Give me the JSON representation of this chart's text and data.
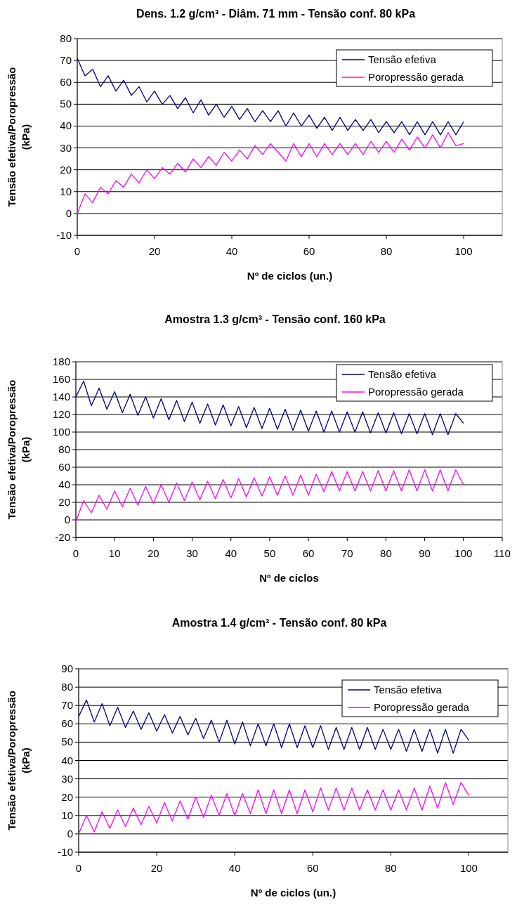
{
  "chart_data": [
    {
      "type": "line",
      "title": "Dens. 1.2 g/cm³ - Diâm. 71 mm - Tensão conf. 80 kPa",
      "xlabel": "Nº de ciclos (un.)",
      "ylabel": "Tensão efetiva/Poropressão (kPa)",
      "xlim": [
        0,
        110
      ],
      "xticks": [
        0,
        20,
        40,
        60,
        80,
        100
      ],
      "ylim": [
        -10,
        80
      ],
      "yticks": [
        -10,
        0,
        10,
        20,
        30,
        40,
        50,
        60,
        70,
        80
      ],
      "grid": "y",
      "legend": "top right",
      "x": [
        0,
        2,
        4,
        6,
        8,
        10,
        12,
        14,
        16,
        18,
        20,
        22,
        24,
        26,
        28,
        30,
        32,
        34,
        36,
        38,
        40,
        42,
        44,
        46,
        48,
        50,
        52,
        54,
        56,
        58,
        60,
        62,
        64,
        66,
        68,
        70,
        72,
        74,
        76,
        78,
        80,
        82,
        84,
        86,
        88,
        90,
        92,
        94,
        96,
        98,
        100
      ],
      "series": [
        {
          "name": "Tensão efetiva",
          "color": "#000080",
          "values": [
            71,
            63,
            66,
            58,
            63,
            56,
            61,
            54,
            58,
            51,
            56,
            50,
            54,
            48,
            53,
            46,
            52,
            45,
            50,
            44,
            49,
            43,
            48,
            42,
            47,
            42,
            47,
            40,
            46,
            40,
            45,
            39,
            44,
            38,
            44,
            38,
            43,
            38,
            43,
            37,
            42,
            37,
            42,
            36,
            42,
            36,
            42,
            36,
            42,
            36,
            42
          ]
        },
        {
          "name": "Poropressão gerada",
          "color": "#ff00ff",
          "values": [
            0,
            9,
            5,
            12,
            9,
            15,
            12,
            18,
            14,
            20,
            16,
            21,
            18,
            23,
            19,
            25,
            21,
            26,
            22,
            28,
            24,
            29,
            25,
            31,
            27,
            32,
            28,
            24,
            32,
            26,
            32,
            26,
            32,
            27,
            32,
            27,
            32,
            27,
            33,
            28,
            33,
            28,
            34,
            29,
            35,
            30,
            36,
            30,
            37,
            31,
            32
          ]
        }
      ]
    },
    {
      "type": "line",
      "title": "Amostra 1.3 g/cm³ - Tensão conf. 160 kPa",
      "xlabel": "Nº de ciclos",
      "ylabel": "Tensão efetiva/Poropressão (kPa)",
      "xlim": [
        0,
        110
      ],
      "xticks": [
        0,
        10,
        20,
        30,
        40,
        50,
        60,
        70,
        80,
        90,
        100,
        110
      ],
      "ylim": [
        -20,
        180
      ],
      "yticks": [
        -20,
        0,
        20,
        40,
        60,
        80,
        100,
        120,
        140,
        160,
        180
      ],
      "grid": "y",
      "legend": "top right",
      "x": [
        0,
        2,
        4,
        6,
        8,
        10,
        12,
        14,
        16,
        18,
        20,
        22,
        24,
        26,
        28,
        30,
        32,
        34,
        36,
        38,
        40,
        42,
        44,
        46,
        48,
        50,
        52,
        54,
        56,
        58,
        60,
        62,
        64,
        66,
        68,
        70,
        72,
        74,
        76,
        78,
        80,
        82,
        84,
        86,
        88,
        90,
        92,
        94,
        96,
        98,
        100
      ],
      "series": [
        {
          "name": "Tensão efetiva",
          "color": "#000080",
          "values": [
            140,
            158,
            130,
            150,
            126,
            146,
            122,
            143,
            119,
            140,
            116,
            138,
            114,
            136,
            112,
            134,
            110,
            132,
            108,
            131,
            107,
            129,
            105,
            128,
            104,
            127,
            103,
            126,
            102,
            125,
            101,
            124,
            100,
            124,
            100,
            123,
            100,
            123,
            99,
            122,
            99,
            122,
            98,
            121,
            98,
            121,
            97,
            121,
            97,
            121,
            110
          ]
        },
        {
          "name": "Poropressão gerada",
          "color": "#ff00ff",
          "values": [
            -2,
            22,
            8,
            28,
            12,
            33,
            15,
            36,
            17,
            38,
            19,
            40,
            20,
            42,
            22,
            43,
            23,
            44,
            24,
            46,
            25,
            47,
            26,
            48,
            27,
            49,
            28,
            50,
            28,
            51,
            28,
            52,
            32,
            55,
            33,
            55,
            33,
            55,
            33,
            56,
            33,
            56,
            33,
            57,
            33,
            57,
            33,
            57,
            33,
            57,
            40
          ]
        }
      ]
    },
    {
      "type": "line",
      "title": "Amostra 1.4 g/cm³ - Tensão conf. 80 kPa",
      "xlabel": "Nº de ciclos (un.)",
      "ylabel": "Tensão efetiva/Poropressão (kPa)",
      "xlim": [
        0,
        110
      ],
      "xticks": [
        0,
        20,
        40,
        60,
        80,
        100
      ],
      "ylim": [
        -10,
        90
      ],
      "yticks": [
        -10,
        0,
        10,
        20,
        30,
        40,
        50,
        60,
        70,
        80,
        90
      ],
      "grid": "y",
      "legend": "top right",
      "x": [
        0,
        2,
        4,
        6,
        8,
        10,
        12,
        14,
        16,
        18,
        20,
        22,
        24,
        26,
        28,
        30,
        32,
        34,
        36,
        38,
        40,
        42,
        44,
        46,
        48,
        50,
        52,
        54,
        56,
        58,
        60,
        62,
        64,
        66,
        68,
        70,
        72,
        74,
        76,
        78,
        80,
        82,
        84,
        86,
        88,
        90,
        92,
        94,
        96,
        98,
        100
      ],
      "series": [
        {
          "name": "Tensão efetiva",
          "color": "#000080",
          "values": [
            64,
            73,
            61,
            71,
            59,
            69,
            58,
            67,
            57,
            66,
            56,
            65,
            55,
            64,
            54,
            63,
            52,
            62,
            50,
            62,
            49,
            61,
            48,
            60,
            48,
            60,
            47,
            60,
            47,
            59,
            47,
            59,
            46,
            58,
            46,
            58,
            46,
            58,
            46,
            57,
            46,
            57,
            45,
            57,
            45,
            57,
            44,
            57,
            44,
            57,
            51
          ]
        },
        {
          "name": "Poropressão gerada",
          "color": "#ff00ff",
          "values": [
            0,
            10,
            1,
            12,
            3,
            13,
            4,
            14,
            5,
            15,
            6,
            17,
            7,
            18,
            8,
            20,
            9,
            21,
            10,
            22,
            10,
            22,
            11,
            24,
            11,
            24,
            11,
            24,
            11,
            24,
            12,
            25,
            13,
            25,
            13,
            25,
            13,
            24,
            13,
            24,
            13,
            24,
            13,
            25,
            13,
            26,
            14,
            28,
            16,
            28,
            21
          ]
        }
      ]
    }
  ]
}
